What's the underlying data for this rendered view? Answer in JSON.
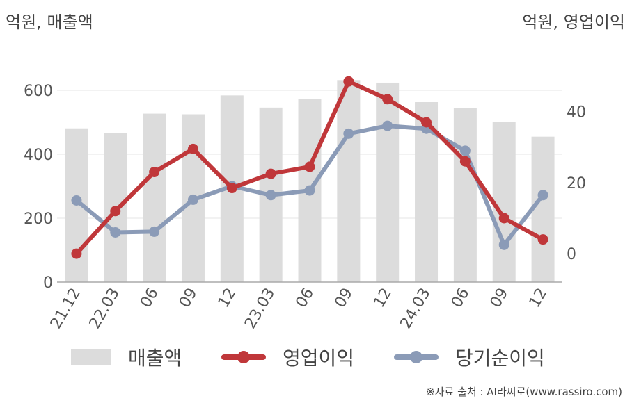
{
  "units": {
    "left": "억원, 매출액",
    "right": "억원, 영업이익"
  },
  "chart_data": {
    "type": "bar+line",
    "categories": [
      "21.12",
      "22.03",
      "06",
      "09",
      "12",
      "23.03",
      "06",
      "09",
      "12",
      "24.03",
      "06",
      "09",
      "12"
    ],
    "left_axis": {
      "ylim": [
        0,
        700
      ],
      "ticks": [
        "0",
        "200",
        "400",
        "600"
      ]
    },
    "right_axis": {
      "ylim": [
        -8,
        55
      ],
      "ticks": [
        "0",
        "20",
        "40"
      ]
    },
    "grid": true,
    "legend_position": "bottom",
    "series": [
      {
        "name": "매출액",
        "type": "bar",
        "axis": "left",
        "color": "#dcdcdc",
        "values": [
          481,
          466,
          527,
          525,
          584,
          546,
          572,
          632,
          624,
          563,
          545,
          500,
          455
        ]
      },
      {
        "name": "영업이익",
        "type": "line",
        "axis": "right",
        "color": "#c0373a",
        "values": [
          0,
          12,
          23,
          29.5,
          18.5,
          22.5,
          24.5,
          48.5,
          43.5,
          37,
          26,
          10,
          4
        ]
      },
      {
        "name": "당기순이익",
        "type": "line",
        "axis": "right",
        "color": "#8b9bb7",
        "values": [
          15,
          6,
          6.2,
          15.2,
          19,
          16.5,
          17.8,
          33.8,
          36,
          35.2,
          29,
          2.5,
          16.5
        ]
      }
    ]
  },
  "legend": {
    "bar": "매출액",
    "line1": "영업이익",
    "line2": "당기순이익"
  },
  "source": "※자료 출처 : AI라씨로(www.rassiro.com)"
}
